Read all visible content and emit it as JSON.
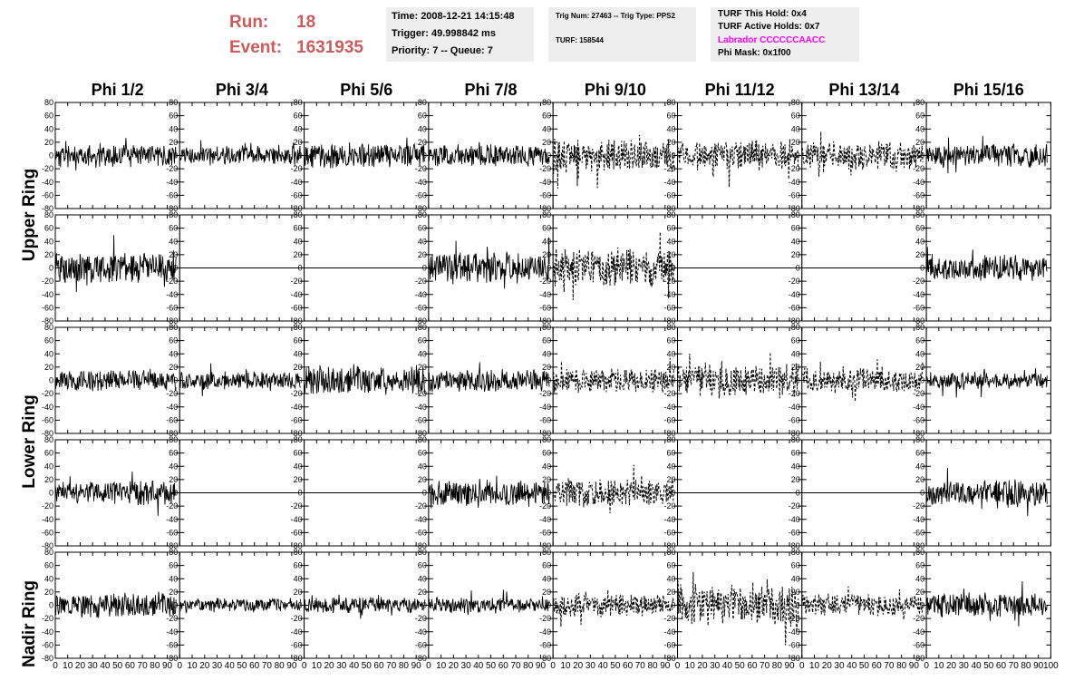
{
  "header": {
    "run_label": "Run:",
    "run_value": "18",
    "event_label": "Event:",
    "event_value": "1631935",
    "box1": [
      "Time: 2008-12-21 14:15:48",
      "Trigger: 49.998842 ms",
      "Priority: 7 -- Queue: 7"
    ],
    "box2": [
      "Trig Num: 27463 -- Trig Type: PPS2",
      "TURF: 158544"
    ],
    "box3": [
      "TURF This Hold: 0x4",
      "TURF Active Holds: 0x7",
      "Labrador CCCCCCAACC",
      "Phi Mask: 0x1f00"
    ],
    "labrador_color": "#ff00ff",
    "run_color": "#cc5c5c",
    "box_color": "#eeeeee"
  },
  "phi_labels": [
    "Phi 1/2",
    "Phi 3/4",
    "Phi 5/6",
    "Phi 7/8",
    "Phi 9/10",
    "Phi 11/12",
    "Phi 13/14",
    "Phi 15/16"
  ],
  "ring_labels": [
    "Upper Ring",
    "Lower Ring",
    "Nadir Ring"
  ],
  "y_ticks": [
    "80",
    "60",
    "40",
    "20",
    "0",
    "-20",
    "-40",
    "-60",
    "-80"
  ],
  "x_ticks": [
    "0",
    "10",
    "20",
    "30",
    "40",
    "50",
    "60",
    "70",
    "80",
    "90",
    "100"
  ],
  "chart_data": {
    "type": "line",
    "title": "",
    "xlabel": "",
    "ylabel": "",
    "xlim": [
      0,
      100
    ],
    "ylim": [
      -80,
      80
    ],
    "grid": false,
    "rows": 5,
    "cols": 8,
    "panels": [
      {
        "row": 0,
        "col": 0,
        "style": "solid",
        "amp": 15,
        "seed": 11
      },
      {
        "row": 0,
        "col": 1,
        "style": "solid",
        "amp": 12,
        "seed": 12
      },
      {
        "row": 0,
        "col": 2,
        "style": "solid",
        "amp": 16,
        "seed": 13
      },
      {
        "row": 0,
        "col": 3,
        "style": "solid",
        "amp": 14,
        "seed": 14
      },
      {
        "row": 0,
        "col": 4,
        "style": "dashed",
        "amp": 22,
        "seed": 15
      },
      {
        "row": 0,
        "col": 5,
        "style": "dashed",
        "amp": 18,
        "seed": 16
      },
      {
        "row": 0,
        "col": 6,
        "style": "dashed",
        "amp": 18,
        "seed": 17
      },
      {
        "row": 0,
        "col": 7,
        "style": "solid",
        "amp": 15,
        "seed": 18
      },
      {
        "row": 1,
        "col": 0,
        "style": "solid",
        "amp": 20,
        "seed": 21
      },
      {
        "row": 1,
        "col": 1,
        "style": "flat",
        "amp": 0,
        "seed": 22
      },
      {
        "row": 1,
        "col": 2,
        "style": "flat",
        "amp": 0,
        "seed": 23
      },
      {
        "row": 1,
        "col": 3,
        "style": "solid",
        "amp": 20,
        "seed": 24
      },
      {
        "row": 1,
        "col": 4,
        "style": "dashed",
        "amp": 25,
        "seed": 25
      },
      {
        "row": 1,
        "col": 5,
        "style": "flat",
        "amp": 0,
        "seed": 26
      },
      {
        "row": 1,
        "col": 6,
        "style": "flat",
        "amp": 0,
        "seed": 27
      },
      {
        "row": 1,
        "col": 7,
        "style": "solid",
        "amp": 16,
        "seed": 28
      },
      {
        "row": 2,
        "col": 0,
        "style": "solid",
        "amp": 13,
        "seed": 31
      },
      {
        "row": 2,
        "col": 1,
        "style": "solid",
        "amp": 11,
        "seed": 32
      },
      {
        "row": 2,
        "col": 2,
        "style": "solid",
        "amp": 18,
        "seed": 33
      },
      {
        "row": 2,
        "col": 3,
        "style": "solid",
        "amp": 14,
        "seed": 34
      },
      {
        "row": 2,
        "col": 4,
        "style": "dashed",
        "amp": 15,
        "seed": 35
      },
      {
        "row": 2,
        "col": 5,
        "style": "dashed",
        "amp": 22,
        "seed": 36
      },
      {
        "row": 2,
        "col": 6,
        "style": "dashed",
        "amp": 16,
        "seed": 37
      },
      {
        "row": 2,
        "col": 7,
        "style": "solid",
        "amp": 11,
        "seed": 38
      },
      {
        "row": 3,
        "col": 0,
        "style": "solid",
        "amp": 15,
        "seed": 41
      },
      {
        "row": 3,
        "col": 1,
        "style": "flat",
        "amp": 0,
        "seed": 42
      },
      {
        "row": 3,
        "col": 2,
        "style": "flat",
        "amp": 0,
        "seed": 43
      },
      {
        "row": 3,
        "col": 3,
        "style": "solid",
        "amp": 17,
        "seed": 44
      },
      {
        "row": 3,
        "col": 4,
        "style": "dashed",
        "amp": 18,
        "seed": 45
      },
      {
        "row": 3,
        "col": 5,
        "style": "flat",
        "amp": 0,
        "seed": 46
      },
      {
        "row": 3,
        "col": 6,
        "style": "flat",
        "amp": 0,
        "seed": 47
      },
      {
        "row": 3,
        "col": 7,
        "style": "solid",
        "amp": 18,
        "seed": 48
      },
      {
        "row": 4,
        "col": 0,
        "style": "solid",
        "amp": 15,
        "seed": 51
      },
      {
        "row": 4,
        "col": 1,
        "style": "solid",
        "amp": 9,
        "seed": 52
      },
      {
        "row": 4,
        "col": 2,
        "style": "solid",
        "amp": 10,
        "seed": 53
      },
      {
        "row": 4,
        "col": 3,
        "style": "solid",
        "amp": 10,
        "seed": 54
      },
      {
        "row": 4,
        "col": 4,
        "style": "dashed",
        "amp": 14,
        "seed": 55
      },
      {
        "row": 4,
        "col": 5,
        "style": "dashed",
        "amp": 26,
        "seed": 56
      },
      {
        "row": 4,
        "col": 6,
        "style": "dashed",
        "amp": 14,
        "seed": 57
      },
      {
        "row": 4,
        "col": 7,
        "style": "solid",
        "amp": 16,
        "seed": 58
      }
    ]
  }
}
